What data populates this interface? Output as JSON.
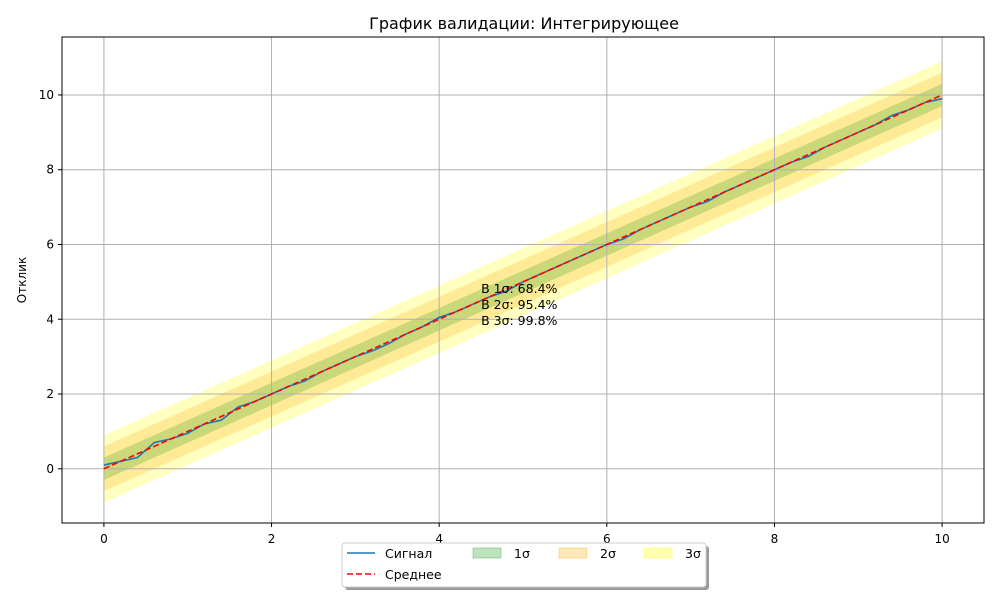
{
  "chart_data": {
    "type": "line",
    "title": "График валидации: Интегрирующее",
    "xlabel": "",
    "ylabel": "Отклик",
    "xlim": [
      -0.5,
      10.5
    ],
    "ylim": [
      -1.45,
      11.55
    ],
    "grid": true,
    "x_ticks": [
      0,
      2,
      4,
      6,
      8,
      10
    ],
    "y_ticks": [
      0,
      2,
      4,
      6,
      8,
      10
    ],
    "mean": {
      "name": "Среднее",
      "x": [
        0,
        10
      ],
      "y": [
        0,
        10
      ],
      "color": "#ff0000"
    },
    "signal": {
      "name": "Сигнал",
      "color": "#1f77b4",
      "x": [
        0,
        0.2,
        0.4,
        0.6,
        0.8,
        1.0,
        1.2,
        1.4,
        1.6,
        1.8,
        2.0,
        2.2,
        2.4,
        2.6,
        2.8,
        3.0,
        3.2,
        3.4,
        3.6,
        3.8,
        4.0,
        4.2,
        4.4,
        4.6,
        4.8,
        5.0,
        5.2,
        5.4,
        5.6,
        5.8,
        6.0,
        6.2,
        6.4,
        6.6,
        6.8,
        7.0,
        7.2,
        7.4,
        7.6,
        7.8,
        8.0,
        8.2,
        8.4,
        8.6,
        8.8,
        9.0,
        9.2,
        9.4,
        9.6,
        9.8,
        10.0
      ],
      "y": [
        0.1,
        0.2,
        0.3,
        0.7,
        0.8,
        0.95,
        1.2,
        1.3,
        1.65,
        1.8,
        2.0,
        2.2,
        2.35,
        2.6,
        2.8,
        3.0,
        3.15,
        3.35,
        3.6,
        3.8,
        4.05,
        4.2,
        4.4,
        4.6,
        4.75,
        5.0,
        5.2,
        5.4,
        5.6,
        5.8,
        6.0,
        6.15,
        6.4,
        6.6,
        6.8,
        7.0,
        7.15,
        7.4,
        7.6,
        7.8,
        8.0,
        8.2,
        8.35,
        8.6,
        8.8,
        9.0,
        9.2,
        9.45,
        9.6,
        9.8,
        9.9
      ]
    },
    "bands": [
      {
        "name": "3σ",
        "sigma": 3,
        "color": "#ffff00",
        "opacity": 0.25
      },
      {
        "name": "2σ",
        "sigma": 2,
        "color": "#ffa500",
        "opacity": 0.22
      },
      {
        "name": "1σ",
        "sigma": 1,
        "color": "#2ca02c",
        "opacity": 0.25
      }
    ],
    "sigma_value": 0.3,
    "annotations": [
      "В 1σ: 68.4%",
      "В 2σ: 95.4%",
      "В 3σ: 99.8%"
    ],
    "annotation_anchor": {
      "x": 4.5,
      "y": 4.7
    },
    "legend": {
      "placement": "bottom-center",
      "entries": [
        "Сигнал",
        "Среднее",
        "1σ",
        "2σ",
        "3σ"
      ]
    }
  }
}
